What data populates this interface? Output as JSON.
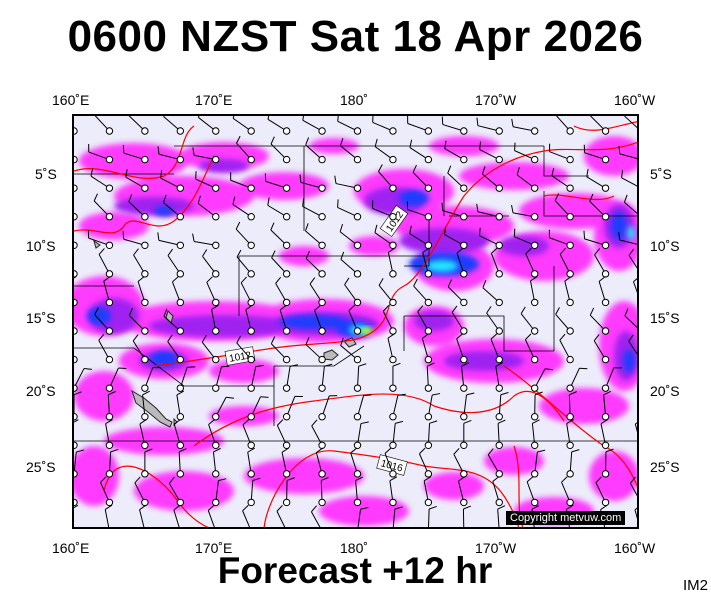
{
  "title": "0600 NZST Sat 18 Apr 2026",
  "footer": "Forecast +12 hr",
  "model_tag": "IM2",
  "copyright": "Copyright metvuw.com",
  "longitude_labels": [
    "160˚E",
    "170˚E",
    "180˚",
    "170˚W",
    "160˚W"
  ],
  "latitude_labels": [
    "5˚S",
    "10˚S",
    "15˚S",
    "20˚S",
    "25˚S"
  ],
  "isobar_labels": [
    "1012",
    "1012",
    "1016"
  ],
  "colors": {
    "background": "#ececfa",
    "rain_light": "#ff33ff",
    "rain_medium": "#a020f0",
    "rain_heavy": "#1c3cff",
    "rain_extreme": "#22e3ff",
    "rain_peak": "#b9ff2a",
    "isobar": "#ff0000",
    "land": "#bbbbbb"
  }
}
